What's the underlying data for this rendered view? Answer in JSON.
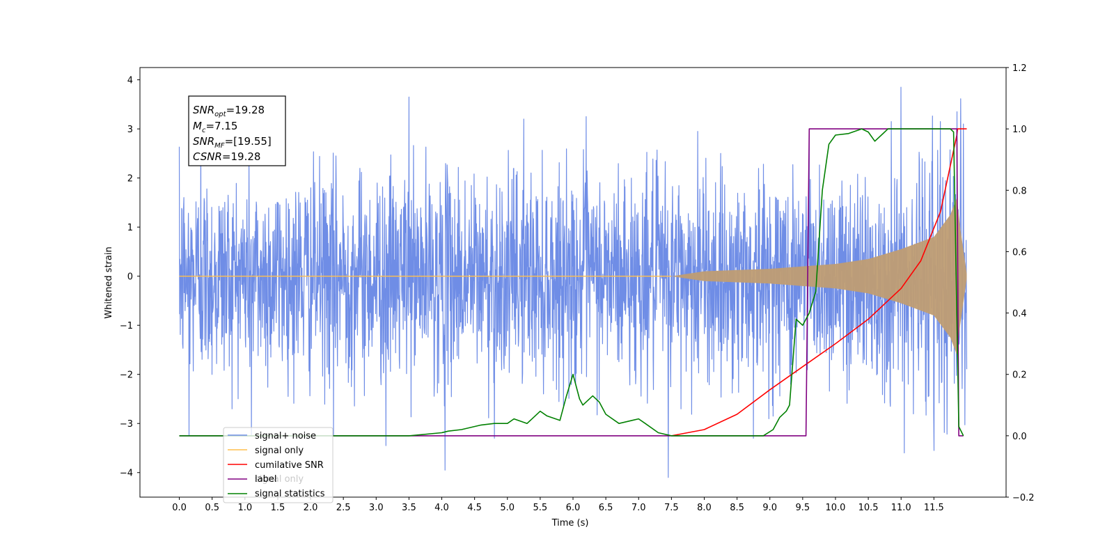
{
  "chart_data": {
    "type": "line",
    "xlabel": "Time (s)",
    "ylabel": "Whitened strain",
    "xlim": [
      -0.6,
      12.6
    ],
    "ylim": [
      -4.5,
      4.25
    ],
    "y2lim": [
      -0.2,
      1.2
    ],
    "x_ticks": [
      "0.0",
      "0.5",
      "1.0",
      "1.5",
      "2.0",
      "2.5",
      "3.0",
      "3.5",
      "4.0",
      "4.5",
      "5.0",
      "5.5",
      "6.0",
      "6.5",
      "7.0",
      "7.5",
      "8.0",
      "8.5",
      "9.0",
      "9.5",
      "10.0",
      "10.5",
      "11.0",
      "11.5"
    ],
    "y_ticks": [
      "4",
      "3",
      "2",
      "1",
      "0",
      "−1",
      "−2",
      "−3",
      "−4"
    ],
    "y2_ticks": [
      "1.2",
      "1.0",
      "0.8",
      "0.6",
      "0.4",
      "0.2",
      "0.0",
      "−0.2"
    ],
    "annotation": {
      "snr_opt": {
        "sym": "SNR",
        "sub": "opt",
        "value": "=19.28"
      },
      "mc": {
        "sym": "M",
        "sub": "c",
        "value": "=7.15"
      },
      "snr_mf": {
        "sym": "SNR",
        "sub": "MF",
        "value": "=[19.55]"
      },
      "csnr": {
        "sym": "CSNR",
        "sub": "",
        "value": "=19.28"
      }
    },
    "legend": {
      "placement": "lower-left",
      "entries": [
        {
          "label": "signal+ noise",
          "color": "#6f8de6"
        },
        {
          "label": "signal only",
          "color": "#ffbf4d"
        },
        {
          "label": "cumilative SNR",
          "color": "#ff0000"
        },
        {
          "label": "label",
          "color": "#800080"
        },
        {
          "label": "signal statistics",
          "color": "#008000"
        }
      ],
      "ghost_text": "signal only"
    },
    "series": [
      {
        "name": "signal+ noise",
        "axis": "left",
        "color": "#6f8de6",
        "x_range": [
          0.0,
          12.0
        ],
        "spikes": [
          [
            0.15,
            -3.25
          ],
          [
            0.33,
            3.08
          ],
          [
            1.1,
            -3.25
          ],
          [
            2.35,
            -3.25
          ],
          [
            3.15,
            -3.45
          ],
          [
            3.5,
            3.65
          ],
          [
            4.05,
            -3.95
          ],
          [
            4.8,
            -3.3
          ],
          [
            5.25,
            3.2
          ],
          [
            6.2,
            3.25
          ],
          [
            7.45,
            -4.1
          ],
          [
            7.9,
            2.95
          ],
          [
            8.75,
            -3.3
          ],
          [
            9.6,
            3.0
          ],
          [
            10.85,
            3.15
          ],
          [
            11.0,
            3.85
          ],
          [
            11.05,
            -3.6
          ],
          [
            11.5,
            -3.55
          ],
          [
            11.6,
            3.15
          ],
          [
            11.85,
            3.35
          ],
          [
            11.95,
            3.1
          ]
        ]
      },
      {
        "name": "signal only",
        "axis": "left",
        "color": "#ffbf4d",
        "envelope": [
          [
            7.5,
            0.0
          ],
          [
            8.0,
            0.1
          ],
          [
            9.0,
            0.15
          ],
          [
            10.0,
            0.25
          ],
          [
            10.5,
            0.35
          ],
          [
            11.0,
            0.55
          ],
          [
            11.5,
            0.8
          ],
          [
            11.75,
            1.25
          ],
          [
            11.85,
            1.6
          ],
          [
            11.9,
            1.0
          ],
          [
            12.0,
            0.05
          ]
        ]
      },
      {
        "name": "cumilative SNR",
        "axis": "right",
        "x": [
          7.5,
          8.0,
          8.5,
          9.0,
          9.5,
          10.0,
          10.5,
          11.0,
          11.3,
          11.6,
          11.85,
          11.86,
          12.0
        ],
        "values": [
          0.0,
          0.02,
          0.07,
          0.15,
          0.225,
          0.3,
          0.38,
          0.48,
          0.57,
          0.73,
          0.98,
          1.0,
          1.0
        ]
      },
      {
        "name": "label",
        "axis": "right",
        "x": [
          0.0,
          9.55,
          9.6,
          11.85,
          11.88,
          11.95
        ],
        "values": [
          0.0,
          0.0,
          1.0,
          1.0,
          0.0,
          0.0
        ]
      },
      {
        "name": "signal statistics",
        "axis": "right",
        "x": [
          0.0,
          3.5,
          4.0,
          4.1,
          4.3,
          4.6,
          4.8,
          5.0,
          5.1,
          5.3,
          5.5,
          5.6,
          5.8,
          5.9,
          6.0,
          6.1,
          6.15,
          6.3,
          6.4,
          6.5,
          6.7,
          6.9,
          7.0,
          7.1,
          7.3,
          7.5,
          7.7,
          8.0,
          8.5,
          8.9,
          9.05,
          9.15,
          9.25,
          9.3,
          9.4,
          9.5,
          9.6,
          9.7,
          9.8,
          9.9,
          10.0,
          10.2,
          10.4,
          10.5,
          10.6,
          10.8,
          11.0,
          11.6,
          11.75,
          11.8,
          11.88,
          11.95
        ],
        "values": [
          0.0,
          0.0,
          0.01,
          0.015,
          0.02,
          0.035,
          0.04,
          0.04,
          0.055,
          0.04,
          0.08,
          0.065,
          0.05,
          0.13,
          0.2,
          0.12,
          0.1,
          0.13,
          0.11,
          0.07,
          0.04,
          0.05,
          0.055,
          0.04,
          0.01,
          0.0,
          0.0,
          0.0,
          0.0,
          0.0,
          0.02,
          0.06,
          0.08,
          0.1,
          0.38,
          0.36,
          0.4,
          0.47,
          0.8,
          0.95,
          0.98,
          0.985,
          1.0,
          0.99,
          0.96,
          1.0,
          1.0,
          1.0,
          1.0,
          0.99,
          0.03,
          0.0
        ]
      }
    ]
  }
}
